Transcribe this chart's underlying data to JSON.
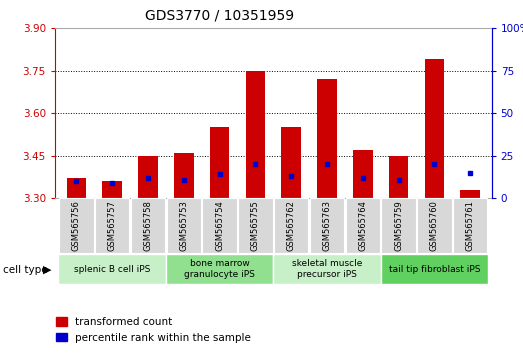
{
  "title": "GDS3770 / 10351959",
  "samples": [
    "GSM565756",
    "GSM565757",
    "GSM565758",
    "GSM565753",
    "GSM565754",
    "GSM565755",
    "GSM565762",
    "GSM565763",
    "GSM565764",
    "GSM565759",
    "GSM565760",
    "GSM565761"
  ],
  "transformed_count": [
    3.37,
    3.36,
    3.45,
    3.46,
    3.55,
    3.75,
    3.55,
    3.72,
    3.47,
    3.45,
    3.79,
    3.33
  ],
  "percentile_rank": [
    10,
    9,
    12,
    11,
    14,
    20,
    13,
    20,
    12,
    11,
    20,
    15
  ],
  "cell_types": [
    {
      "label": "splenic B cell iPS",
      "start": 0,
      "end": 3,
      "color": "#c8f0c8"
    },
    {
      "label": "bone marrow\ngranulocyte iPS",
      "start": 3,
      "end": 6,
      "color": "#90e090"
    },
    {
      "label": "skeletal muscle\nprecursor iPS",
      "start": 6,
      "end": 9,
      "color": "#c8f0c8"
    },
    {
      "label": "tail tip fibroblast iPS",
      "start": 9,
      "end": 12,
      "color": "#60d060"
    }
  ],
  "ylim_left": [
    3.3,
    3.9
  ],
  "ylim_right": [
    0,
    100
  ],
  "yticks_left": [
    3.3,
    3.45,
    3.6,
    3.75,
    3.9
  ],
  "yticks_right": [
    0,
    25,
    50,
    75,
    100
  ],
  "bar_color_red": "#cc0000",
  "bar_color_blue": "#0000cc",
  "background_color": "#ffffff",
  "bar_width": 0.55,
  "percentile_scale_max": 100
}
